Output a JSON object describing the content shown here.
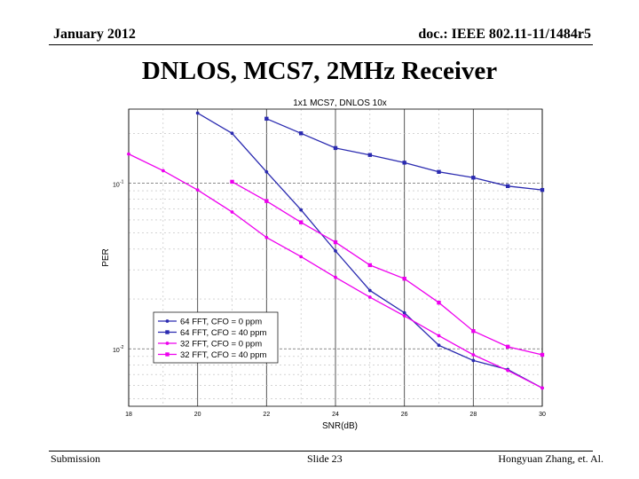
{
  "header": {
    "date": "January 2012",
    "doc": "doc.: IEEE 802.11-11/1484r5"
  },
  "slide_title": "DNLOS, MCS7, 2MHz Receiver",
  "footer": {
    "left": "Submission",
    "center": "Slide 23",
    "right": "Hongyuan Zhang, et. Al."
  },
  "chart_data": {
    "type": "line",
    "title": "1x1 MCS7, DNLOS 10x",
    "xlabel": "SNR(dB)",
    "ylabel": "PER",
    "xlim": [
      18,
      30
    ],
    "ylim": [
      0.0045,
      0.28
    ],
    "yscale": "log",
    "xticks": [
      18,
      20,
      22,
      24,
      26,
      28,
      30
    ],
    "xtick_labels": [
      "18",
      "20",
      "22",
      "24",
      "26",
      "28",
      "30"
    ],
    "ytick_labels": [
      {
        "value": 0.1,
        "base": "10",
        "exp": "-1"
      },
      {
        "value": 0.01,
        "base": "10",
        "exp": "-2"
      }
    ],
    "grid": true,
    "legend_position": "bottom-left",
    "series": [
      {
        "name": "64 FFT, CFO = 0 ppm",
        "color": "#2a2ab0",
        "marker": "dot",
        "x": [
          20,
          21,
          22,
          23,
          24,
          25,
          26,
          27,
          28,
          29,
          30
        ],
        "y": [
          0.265,
          0.2,
          0.117,
          0.069,
          0.039,
          0.0225,
          0.0165,
          0.0105,
          0.0085,
          0.0075,
          0.0058
        ]
      },
      {
        "name": "64 FFT, CFO = 40 ppm",
        "color": "#2a2ab0",
        "marker": "square",
        "x": [
          22,
          23,
          24,
          25,
          26,
          27,
          28,
          29,
          30
        ],
        "y": [
          0.245,
          0.2,
          0.163,
          0.148,
          0.133,
          0.117,
          0.108,
          0.096,
          0.091
        ]
      },
      {
        "name": "32 FFT, CFO = 0 ppm",
        "color": "#ee00ee",
        "marker": "dot",
        "x": [
          18,
          19,
          20,
          21,
          22,
          23,
          24,
          25,
          26,
          27,
          28,
          29,
          30
        ],
        "y": [
          0.15,
          0.119,
          0.091,
          0.067,
          0.047,
          0.036,
          0.027,
          0.0205,
          0.0158,
          0.012,
          0.0092,
          0.0074,
          0.0058
        ]
      },
      {
        "name": "32 FFT, CFO = 40 ppm",
        "color": "#ee00ee",
        "marker": "square",
        "x": [
          21,
          22,
          23,
          24,
          25,
          26,
          27,
          28,
          29,
          30
        ],
        "y": [
          0.102,
          0.078,
          0.058,
          0.044,
          0.032,
          0.0265,
          0.019,
          0.0128,
          0.0103,
          0.0092
        ]
      }
    ]
  }
}
